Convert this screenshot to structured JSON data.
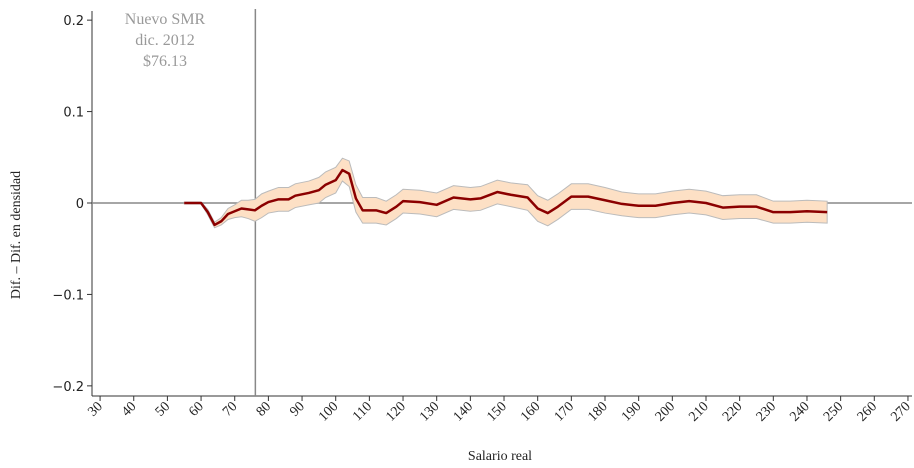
{
  "chart_data": {
    "type": "line",
    "y_label": "Dif. – Dif. en densidad",
    "x_label": "Salario real",
    "annotation": [
      "Nuevo SMR",
      "dic. 2012",
      "$76.13"
    ],
    "vline": 76.13,
    "hline": 0,
    "xlim": [
      27.6,
      271.2
    ],
    "ylim": [
      -0.21,
      0.21
    ],
    "xticks": [
      30,
      40,
      50,
      60,
      70,
      80,
      90,
      100,
      110,
      120,
      130,
      140,
      150,
      160,
      170,
      180,
      190,
      200,
      210,
      220,
      230,
      240,
      250,
      260,
      270
    ],
    "yticks": [
      0.2,
      0.1,
      0,
      {
        "value": -0.1,
        "label": "−0.1"
      },
      {
        "value": -0.2,
        "label": "−0.2"
      }
    ],
    "series": [
      {
        "color": "#8b0000",
        "band_color": "#fde0c5",
        "x": [
          55,
          60,
          62,
          64,
          66,
          68,
          70,
          72,
          74,
          76,
          78,
          80,
          83,
          86,
          88,
          92,
          95,
          97,
          100,
          102,
          104,
          106,
          108,
          112,
          115,
          118,
          120,
          125,
          130,
          135,
          140,
          143,
          148,
          152,
          157,
          160,
          163,
          166,
          170,
          175,
          180,
          185,
          190,
          195,
          200,
          205,
          210,
          215,
          220,
          225,
          230,
          235,
          240,
          246
        ],
        "values": [
          0,
          0,
          -0.01,
          -0.024,
          -0.02,
          -0.012,
          -0.009,
          -0.006,
          -0.007,
          -0.008,
          -0.003,
          0.001,
          0.004,
          0.004,
          0.008,
          0.011,
          0.014,
          0.02,
          0.025,
          0.036,
          0.032,
          0.005,
          -0.008,
          -0.008,
          -0.011,
          -0.004,
          0.002,
          0.001,
          -0.002,
          0.006,
          0.004,
          0.005,
          0.012,
          0.009,
          0.006,
          -0.006,
          -0.011,
          -0.004,
          0.007,
          0.007,
          0.003,
          -0.001,
          -0.003,
          -0.003,
          0,
          0.002,
          0,
          -0.005,
          -0.004,
          -0.004,
          -0.01,
          -0.01,
          -0.009,
          -0.01
        ],
        "lower": [
          -0.001,
          -0.001,
          -0.013,
          -0.027,
          -0.024,
          -0.018,
          -0.016,
          -0.015,
          -0.017,
          -0.02,
          -0.016,
          -0.011,
          -0.009,
          -0.009,
          -0.005,
          -0.002,
          0.0,
          0.006,
          0.011,
          0.024,
          0.018,
          -0.01,
          -0.022,
          -0.022,
          -0.024,
          -0.017,
          -0.011,
          -0.012,
          -0.015,
          -0.007,
          -0.009,
          -0.008,
          -0.001,
          -0.004,
          -0.008,
          -0.02,
          -0.025,
          -0.018,
          -0.007,
          -0.007,
          -0.011,
          -0.014,
          -0.016,
          -0.016,
          -0.013,
          -0.011,
          -0.013,
          -0.018,
          -0.017,
          -0.017,
          -0.022,
          -0.022,
          -0.021,
          -0.022
        ],
        "upper": [
          0.001,
          0.001,
          -0.007,
          -0.021,
          -0.016,
          -0.006,
          -0.002,
          0.003,
          0.003,
          0.004,
          0.01,
          0.013,
          0.017,
          0.017,
          0.021,
          0.024,
          0.028,
          0.034,
          0.039,
          0.049,
          0.046,
          0.02,
          0.006,
          0.006,
          0.002,
          0.009,
          0.015,
          0.014,
          0.011,
          0.019,
          0.017,
          0.018,
          0.025,
          0.022,
          0.02,
          0.008,
          0.003,
          0.01,
          0.021,
          0.021,
          0.017,
          0.012,
          0.01,
          0.01,
          0.013,
          0.015,
          0.013,
          0.008,
          0.009,
          0.009,
          0.002,
          0.002,
          0.003,
          0.002
        ]
      }
    ]
  }
}
